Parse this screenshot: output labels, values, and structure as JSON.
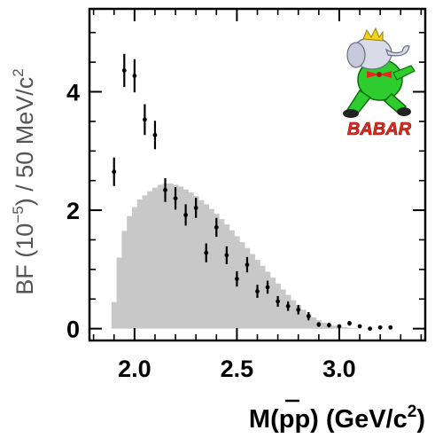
{
  "chart_data": {
    "type": "bar",
    "xlabel": "M(pp̄) (GeV/c²)",
    "xlabel_parts": {
      "prefix": "M(p",
      "pbar": "p",
      "suffix": ") (GeV/c",
      "sup": "2",
      "close": ")"
    },
    "ylabel": "BF (10⁻⁵) / 50 MeV/c²",
    "ylabel_parts": {
      "bf": "BF",
      "open": " (10",
      "sup": "−5",
      "close": ")  /  50 MeV/c",
      "sup2": "2"
    },
    "xlim": [
      1.78,
      3.42
    ],
    "ylim": [
      -0.2,
      5.4
    ],
    "x_ticks": [
      {
        "value": 2.0,
        "label": "2.0"
      },
      {
        "value": 2.5,
        "label": "2.5"
      },
      {
        "value": 3.0,
        "label": "3.0"
      }
    ],
    "y_ticks": [
      {
        "value": 0,
        "label": "0"
      },
      {
        "value": 2,
        "label": "2"
      },
      {
        "value": 4,
        "label": "4"
      }
    ],
    "grid": false,
    "logo": {
      "text": "BABAR"
    },
    "colors": {
      "histogram": "#c8c8c8",
      "points": "#000000",
      "logo_text": "#e52b20",
      "logo_body": "#2ecc2e"
    },
    "series": [
      {
        "kind": "histogram",
        "bin_width": 0.025,
        "x": [
          1.9,
          1.925,
          1.95,
          1.975,
          2.0,
          2.025,
          2.05,
          2.075,
          2.1,
          2.125,
          2.15,
          2.175,
          2.2,
          2.225,
          2.25,
          2.275,
          2.3,
          2.325,
          2.35,
          2.375,
          2.4,
          2.425,
          2.45,
          2.475,
          2.5,
          2.525,
          2.55,
          2.575,
          2.6,
          2.625,
          2.65,
          2.675,
          2.7,
          2.725,
          2.75,
          2.775,
          2.8,
          2.825,
          2.85,
          2.875,
          2.9,
          2.925,
          2.95,
          2.975,
          3.0,
          3.025,
          3.05,
          3.075,
          3.1,
          3.125,
          3.15
        ],
        "values": [
          0.45,
          1.2,
          1.65,
          1.9,
          2.05,
          2.18,
          2.25,
          2.32,
          2.38,
          2.43,
          2.45,
          2.45,
          2.43,
          2.4,
          2.35,
          2.3,
          2.24,
          2.17,
          2.1,
          2.02,
          1.94,
          1.85,
          1.76,
          1.66,
          1.56,
          1.46,
          1.36,
          1.26,
          1.16,
          1.06,
          0.96,
          0.86,
          0.76,
          0.66,
          0.57,
          0.48,
          0.4,
          0.32,
          0.25,
          0.19,
          0.14,
          0.1,
          0.07,
          0.05,
          0.035,
          0.025,
          0.015,
          0.01,
          0.005,
          0.003,
          0.0
        ]
      },
      {
        "kind": "points",
        "x": [
          1.9,
          1.95,
          2.0,
          2.05,
          2.1,
          2.15,
          2.2,
          2.25,
          2.3,
          2.35,
          2.4,
          2.45,
          2.5,
          2.55,
          2.6,
          2.65,
          2.7,
          2.75,
          2.8,
          2.85,
          2.9,
          2.95,
          3.0,
          3.05,
          3.1,
          3.15,
          3.2,
          3.25
        ],
        "values": [
          2.65,
          4.36,
          4.27,
          3.53,
          3.27,
          2.34,
          2.2,
          1.92,
          2.04,
          1.28,
          1.71,
          1.24,
          0.84,
          1.08,
          0.63,
          0.7,
          0.46,
          0.38,
          0.32,
          0.21,
          0.07,
          0.06,
          0.04,
          0.09,
          0.04,
          0.0,
          0.02,
          0.02
        ],
        "errors": [
          0.24,
          0.28,
          0.28,
          0.26,
          0.24,
          0.2,
          0.19,
          0.18,
          0.17,
          0.16,
          0.16,
          0.15,
          0.13,
          0.13,
          0.11,
          0.11,
          0.09,
          0.08,
          0.08,
          0.07,
          0.04,
          0.04,
          0.03,
          0.04,
          0.03,
          0.02,
          0.02,
          0.02
        ]
      }
    ]
  }
}
